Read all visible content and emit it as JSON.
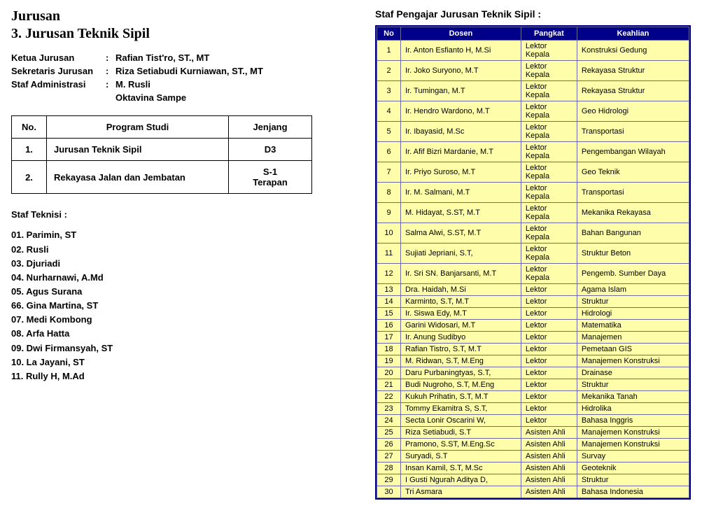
{
  "left": {
    "title1": "Jurusan",
    "title2": "3. Jurusan Teknik Sipil",
    "info": [
      {
        "label": "Ketua Jurusan",
        "value": "Rafian Tist'ro, ST., MT"
      },
      {
        "label": "Sekretaris Jurusan",
        "value": "Riza Setiabudi Kurniawan, ST., MT"
      },
      {
        "label": "Staf Administrasi",
        "value": "M. Rusli"
      },
      {
        "label": "",
        "value": "Oktavina Sampe"
      }
    ],
    "prog_headers": {
      "no": "No.",
      "prog": "Program Studi",
      "jen": "Jenjang"
    },
    "prog_rows": [
      {
        "no": "1.",
        "prog": "Jurusan Teknik  Sipil",
        "jen": "D3"
      },
      {
        "no": "2.",
        "prog": "Rekayasa Jalan dan Jembatan",
        "jen": "S-1\nTerapan"
      }
    ],
    "teknisi_label": "Staf Teknisi :",
    "teknisi": [
      "01. Parimin, ST",
      "02. Rusli",
      "03. Djuriadi",
      "04. Nurharnawi, A.Md",
      "05. Agus Surana",
      "66. Gina Martina, ST",
      "07. Medi Kombong",
      "08. Arfa Hatta",
      "09. Dwi Firmansyah, ST",
      "10. La Jayani, ST",
      "11. Rully H, M.Ad"
    ]
  },
  "right": {
    "title": "Staf Pengajar Jurusan Teknik Sipil :",
    "headers": {
      "no": "No",
      "dosen": "Dosen",
      "pangkat": "Pangkat",
      "keahlian": "Keahlian"
    },
    "rows": [
      {
        "no": "1",
        "d": "Ir. Anton Esfianto H, M.Si",
        "p": "Lektor Kepala",
        "k": "Konstruksi Gedung"
      },
      {
        "no": "2",
        "d": "Ir. Joko Suryono, M.T",
        "p": "Lektor Kepala",
        "k": "Rekayasa Struktur"
      },
      {
        "no": "3",
        "d": "Ir. Tumingan, M.T",
        "p": "Lektor Kepala",
        "k": "Rekayasa Struktur"
      },
      {
        "no": "4",
        "d": "Ir. Hendro Wardono, M.T",
        "p": "Lektor Kepala",
        "k": "Geo Hidrologi"
      },
      {
        "no": "5",
        "d": "Ir. Ibayasid, M.Sc",
        "p": "Lektor Kepala",
        "k": "Transportasi"
      },
      {
        "no": "6",
        "d": "Ir. Afif Bizri Mardanie, M.T",
        "p": "Lektor Kepala",
        "k": "Pengembangan Wilayah"
      },
      {
        "no": "7",
        "d": "Ir. Priyo Suroso, M.T",
        "p": "Lektor Kepala",
        "k": "Geo Teknik"
      },
      {
        "no": "8",
        "d": "Ir. M. Salmani, M.T",
        "p": "Lektor Kepala",
        "k": "Transportasi"
      },
      {
        "no": "9",
        "d": "M. Hidayat, S.ST, M.T",
        "p": "Lektor Kepala",
        "k": "Mekanika Rekayasa"
      },
      {
        "no": "10",
        "d": "Salma Alwi, S.ST, M.T",
        "p": "Lektor Kepala",
        "k": "Bahan Bangunan"
      },
      {
        "no": "11",
        "d": "Sujiati Jepriani, S.T,",
        "p": "Lektor Kepala",
        "k": "Struktur Beton"
      },
      {
        "no": "12",
        "d": "Ir. Sri SN. Banjarsanti, M.T",
        "p": "Lektor Kepala",
        "k": "Pengemb. Sumber Daya"
      },
      {
        "no": "13",
        "d": "Dra. Haidah, M.Si",
        "p": "Lektor",
        "k": "Agama Islam"
      },
      {
        "no": "14",
        "d": "Karminto, S.T, M.T",
        "p": "Lektor",
        "k": "Struktur"
      },
      {
        "no": "15",
        "d": "Ir. Siswa Edy, M.T",
        "p": "Lektor",
        "k": "Hidrologi"
      },
      {
        "no": "16",
        "d": "Garini Widosari, M.T",
        "p": "Lektor",
        "k": "Matematika"
      },
      {
        "no": "17",
        "d": "Ir. Anung Sudibyo",
        "p": "Lektor",
        "k": "Manajemen"
      },
      {
        "no": "18",
        "d": "Rafian Tistro, S.T, M.T",
        "p": "Lektor",
        "k": "Pemetaan GIS"
      },
      {
        "no": "19",
        "d": "M. Ridwan, S.T, M.Eng",
        "p": "Lektor",
        "k": "Manajemen Konstruksi"
      },
      {
        "no": "20",
        "d": "Daru Purbaningtyas, S.T,",
        "p": "Lektor",
        "k": "Drainase"
      },
      {
        "no": "21",
        "d": "Budi Nugroho, S.T, M.Eng",
        "p": "Lektor",
        "k": "Struktur"
      },
      {
        "no": "22",
        "d": "Kukuh Prihatin, S.T, M.T",
        "p": "Lektor",
        "k": "Mekanika Tanah"
      },
      {
        "no": "23",
        "d": "Tommy Ekamitra S, S.T,",
        "p": "Lektor",
        "k": "Hidrolika"
      },
      {
        "no": "24",
        "d": "Secta Lonir Oscarini W,",
        "p": "Lektor",
        "k": "Bahasa Inggris"
      },
      {
        "no": "25",
        "d": "Riza Setiabudi, S.T",
        "p": "Asisten Ahli",
        "k": "Manajemen Konstruksi"
      },
      {
        "no": "26",
        "d": "Pramono, S.ST, M.Eng.Sc",
        "p": "Asisten Ahli",
        "k": "Manajemen Konstruksi"
      },
      {
        "no": "27",
        "d": "Suryadi, S.T",
        "p": "Asisten Ahli",
        "k": "Survay"
      },
      {
        "no": "28",
        "d": "Insan Kamil, S.T, M.Sc",
        "p": "Asisten Ahli",
        "k": "Geoteknik"
      },
      {
        "no": "29",
        "d": "I Gusti Ngurah Aditya D,",
        "p": "Asisten Ahli",
        "k": "Struktur"
      },
      {
        "no": "30",
        "d": "Tri Asmara",
        "p": "Asisten Ahli",
        "k": "Bahasa Indonesia"
      }
    ]
  },
  "colors": {
    "header_bg": "#000088",
    "header_fg": "#ffffff",
    "cell_bg": "#fdfdaa",
    "border": "#6a6a9f"
  }
}
